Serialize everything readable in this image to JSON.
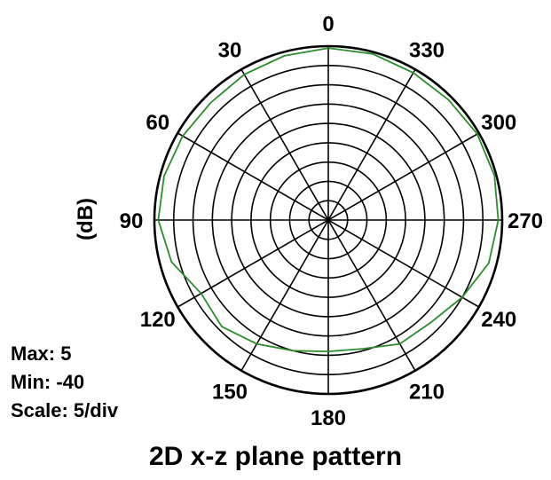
{
  "chart_data": {
    "type": "polar-line",
    "title": "2D x-z plane pattern",
    "ylabel": "(dB)",
    "angle_direction": "counterclockwise",
    "zero_at": "top",
    "angle_ticks": [
      0,
      30,
      60,
      90,
      120,
      150,
      180,
      210,
      240,
      270,
      300,
      330
    ],
    "radial_min": -40,
    "radial_max": 5,
    "radial_step": 5,
    "grid": true,
    "series": [
      {
        "color": "#2e8b2e",
        "angles": [
          0,
          15,
          30,
          45,
          60,
          75,
          90,
          105,
          120,
          135,
          150,
          165,
          180,
          195,
          210,
          225,
          240,
          255,
          270,
          285,
          300,
          315,
          330,
          345
        ],
        "values": [
          4.5,
          4.0,
          3.5,
          3.0,
          3.5,
          4.0,
          4.0,
          2.0,
          -2.0,
          -1.0,
          -3.0,
          -5.0,
          -6.0,
          -5.5,
          -3.0,
          -2.5,
          0.0,
          3.0,
          4.0,
          4.5,
          4.5,
          4.0,
          4.0,
          4.5
        ]
      }
    ]
  },
  "info": {
    "max": "Max: 5",
    "min": "Min: -40",
    "scale": "Scale: 5/div"
  }
}
